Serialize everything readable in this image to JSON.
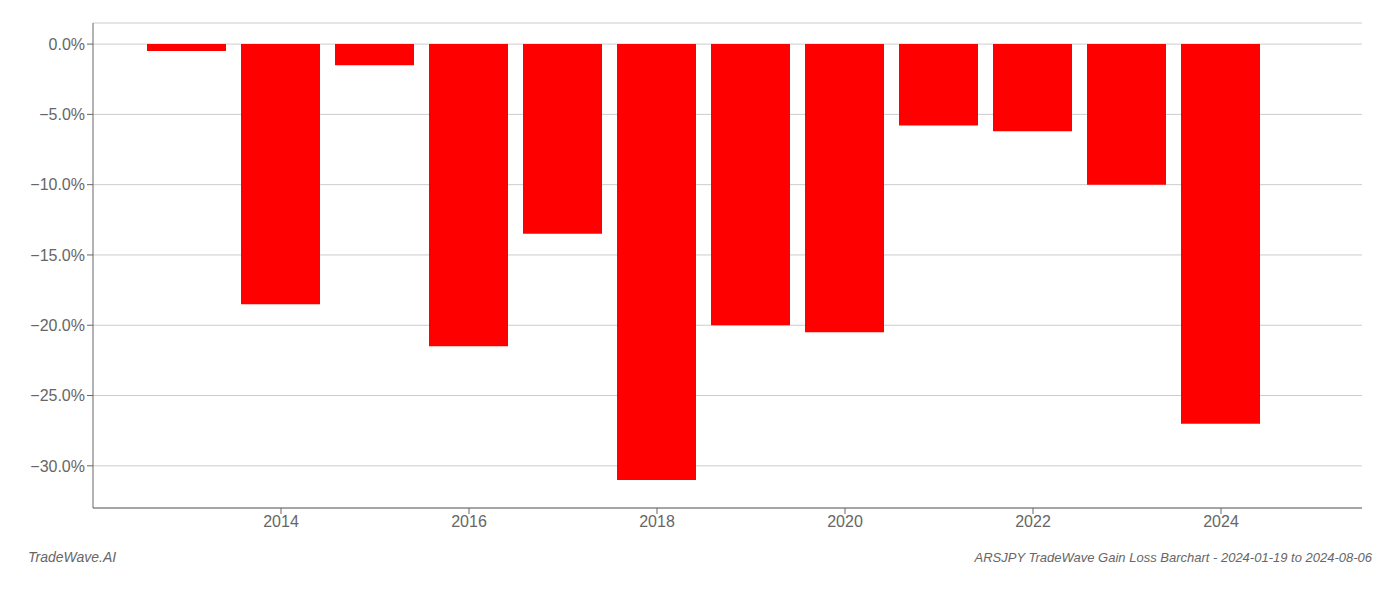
{
  "chart_data": {
    "type": "bar",
    "title": "ARSJPY TradeWave Gain Loss Barchart - 2024-01-19 to 2024-08-06",
    "annotations": [
      "TradeWave.AI"
    ],
    "x": [
      2013,
      2014,
      2015,
      2016,
      2017,
      2018,
      2019,
      2020,
      2021,
      2022,
      2023,
      2024
    ],
    "values": [
      -0.5,
      -18.5,
      -1.5,
      -21.5,
      -13.5,
      -31.0,
      -20.0,
      -20.5,
      -5.8,
      -6.2,
      -10.0,
      -27.0
    ],
    "color": "#ff0000",
    "xlim": [
      2012.0,
      2025.5
    ],
    "xticks": [
      2014,
      2016,
      2018,
      2020,
      2022,
      2024
    ],
    "ylim": [
      -33,
      1.5
    ],
    "yticks": [
      {
        "value": 0.0,
        "label": "0.0%"
      },
      {
        "value": -5.0,
        "label": "−5.0%"
      },
      {
        "value": -10.0,
        "label": "−10.0%"
      },
      {
        "value": -15.0,
        "label": "−15.0%"
      },
      {
        "value": -20.0,
        "label": "−20.0%"
      },
      {
        "value": -25.0,
        "label": "−25.0%"
      },
      {
        "value": -30.0,
        "label": "−30.0%"
      }
    ],
    "grid": true
  }
}
